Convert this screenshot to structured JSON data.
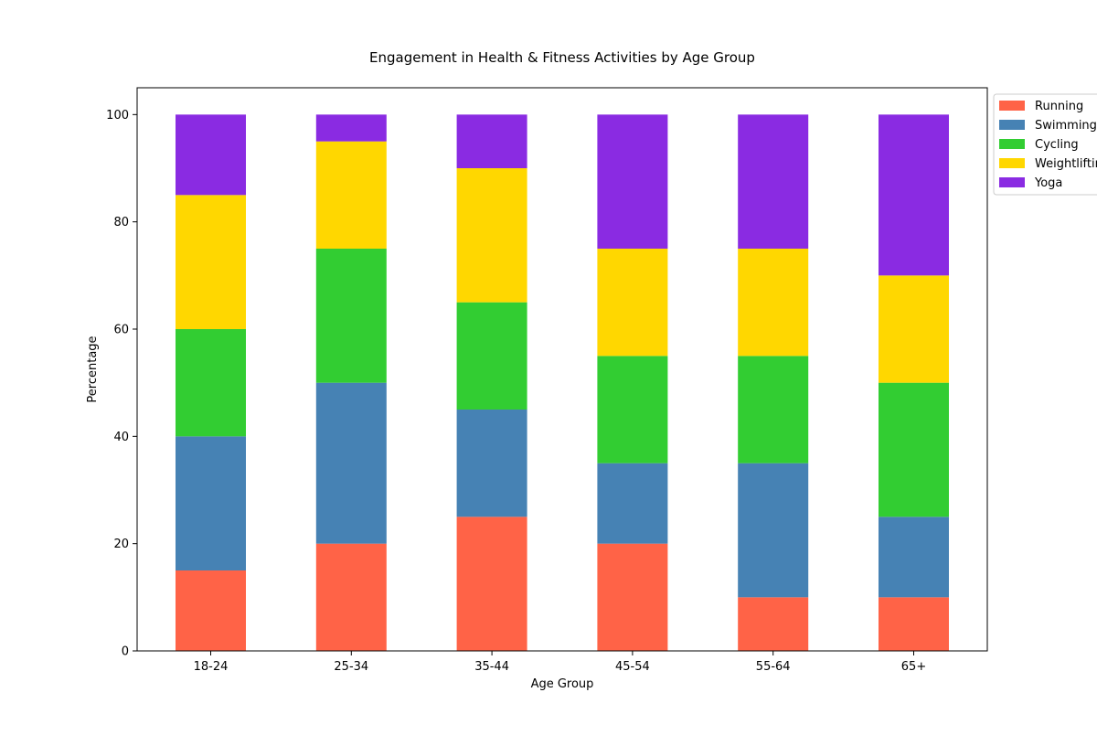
{
  "chart_data": {
    "type": "bar",
    "stacked": true,
    "title": "Engagement in Health & Fitness Activities by Age Group",
    "xlabel": "Age Group",
    "ylabel": "Percentage",
    "categories": [
      "18-24",
      "25-34",
      "35-44",
      "45-54",
      "55-64",
      "65+"
    ],
    "series": [
      {
        "name": "Running",
        "color": "#ff6347",
        "values": [
          15,
          20,
          25,
          20,
          10,
          10
        ]
      },
      {
        "name": "Swimming",
        "color": "#4682b4",
        "values": [
          25,
          30,
          20,
          15,
          25,
          15
        ]
      },
      {
        "name": "Cycling",
        "color": "#32cd32",
        "values": [
          20,
          25,
          20,
          20,
          20,
          25
        ]
      },
      {
        "name": "Weightlifting",
        "color": "#ffd700",
        "values": [
          25,
          20,
          25,
          20,
          20,
          20
        ]
      },
      {
        "name": "Yoga",
        "color": "#8a2be2",
        "values": [
          15,
          5,
          10,
          25,
          25,
          30
        ]
      }
    ],
    "ylim": [
      0,
      105
    ],
    "yticks": [
      0,
      20,
      40,
      60,
      80,
      100
    ],
    "grid": false,
    "legend_position": "outside-top-right"
  }
}
